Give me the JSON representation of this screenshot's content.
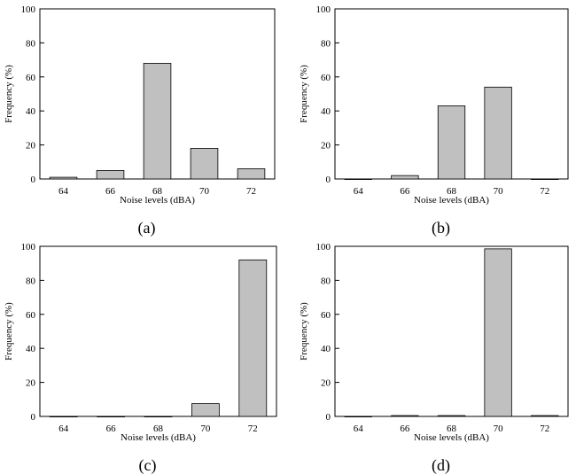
{
  "colors": {
    "bar_fill": "#c0c0c0",
    "bar_stroke": "#000000",
    "axis": "#000000"
  },
  "chart_data": [
    {
      "type": "bar",
      "panel_label": "(a)",
      "categories": [
        "64",
        "66",
        "68",
        "70",
        "72"
      ],
      "values": [
        1,
        5,
        68,
        18,
        6
      ],
      "xlabel": "Noise levels (dBA)",
      "ylabel": "Frequency (%)",
      "ylim": [
        0,
        100
      ],
      "yticks": [
        0,
        20,
        40,
        60,
        80,
        100
      ],
      "grid": false,
      "legend": "none"
    },
    {
      "type": "bar",
      "panel_label": "(b)",
      "categories": [
        "64",
        "66",
        "68",
        "70",
        "72"
      ],
      "values": [
        0,
        2,
        43,
        54,
        0
      ],
      "xlabel": "Noise levels (dBA)",
      "ylabel": "Frequency (%)",
      "ylim": [
        0,
        100
      ],
      "yticks": [
        0,
        20,
        40,
        60,
        80,
        100
      ],
      "grid": false,
      "legend": "none"
    },
    {
      "type": "bar",
      "panel_label": "(c)",
      "categories": [
        "64",
        "66",
        "68",
        "70",
        "72"
      ],
      "values": [
        0,
        0,
        0,
        7.5,
        92
      ],
      "xlabel": "Noise levels (dBA)",
      "ylabel": "Frequency (%)",
      "ylim": [
        0,
        100
      ],
      "yticks": [
        0,
        20,
        40,
        60,
        80,
        100
      ],
      "grid": false,
      "legend": "none"
    },
    {
      "type": "bar",
      "panel_label": "(d)",
      "categories": [
        "64",
        "66",
        "68",
        "70",
        "72"
      ],
      "values": [
        0,
        0.5,
        0.5,
        98.5,
        0.5
      ],
      "xlabel": "Noise levels (dBA)",
      "ylabel": "Frequency (%)",
      "ylim": [
        0,
        100
      ],
      "yticks": [
        0,
        20,
        40,
        60,
        80,
        100
      ],
      "grid": false,
      "legend": "none"
    }
  ]
}
